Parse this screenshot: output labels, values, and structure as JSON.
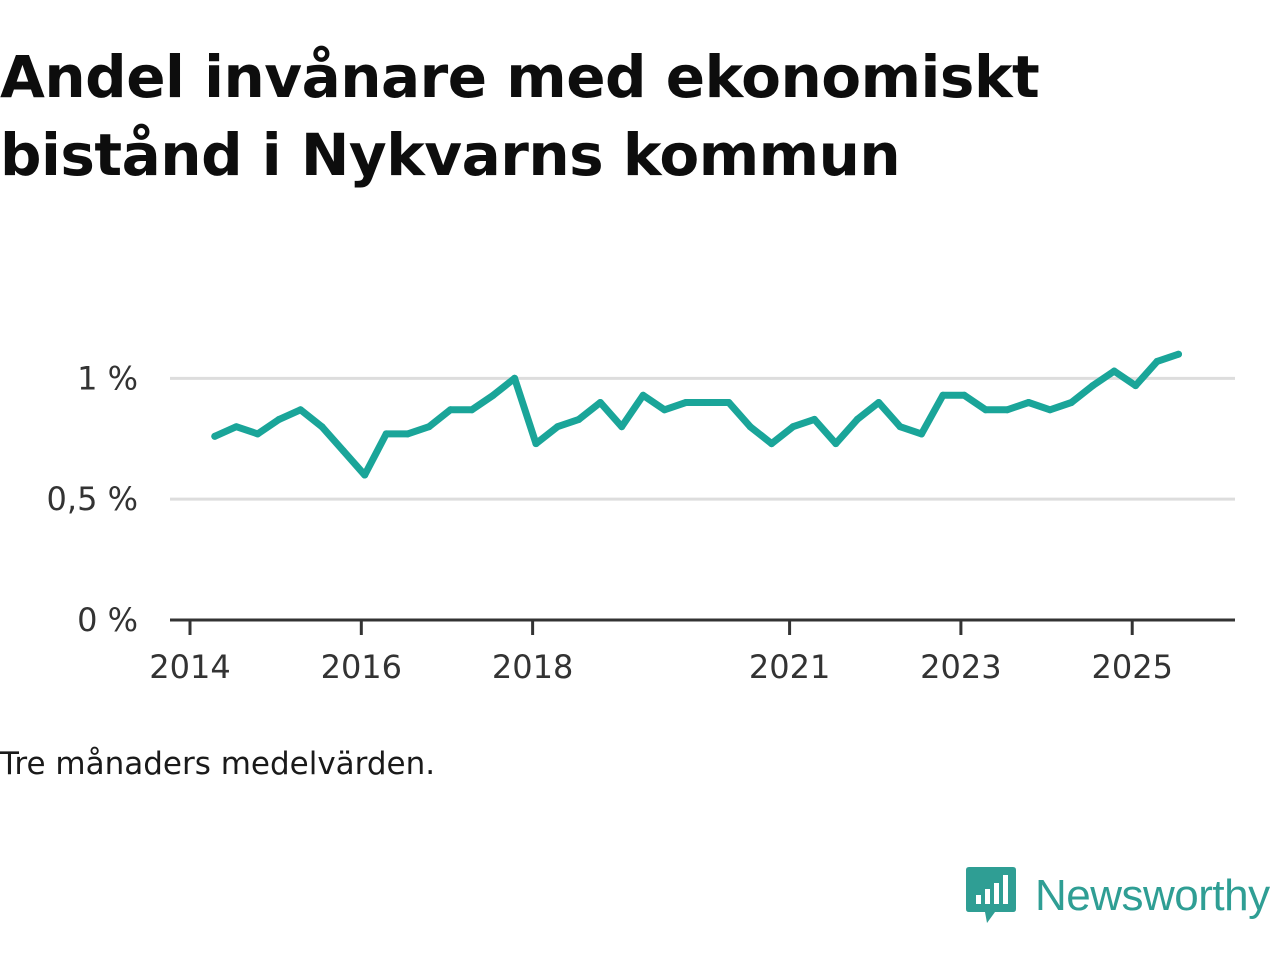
{
  "chart_data": {
    "type": "line",
    "title": "Andel invånare med ekonomiskt bistånd i Nykvarns kommun",
    "note": "Tre månaders medelvärden.",
    "xlabel": "",
    "ylabel": "",
    "ylim": [
      0,
      1.2
    ],
    "xlim": [
      2014.0,
      2026.2
    ],
    "y_ticks": [
      {
        "value": 0,
        "label": "0 %"
      },
      {
        "value": 0.5,
        "label": "0,5 %"
      },
      {
        "value": 1,
        "label": "1 %"
      }
    ],
    "x_ticks": [
      {
        "value": 2014,
        "label": "2014"
      },
      {
        "value": 2016,
        "label": "2016"
      },
      {
        "value": 2018,
        "label": "2018"
      },
      {
        "value": 2021,
        "label": "2021"
      },
      {
        "value": 2023,
        "label": "2023"
      },
      {
        "value": 2025,
        "label": "2025"
      }
    ],
    "series": [
      {
        "name": "Andel invånare med ekonomiskt bistånd",
        "color": "#1aa599",
        "x": [
          2014.29,
          2014.54,
          2014.79,
          2015.04,
          2015.29,
          2015.54,
          2015.79,
          2016.04,
          2016.29,
          2016.54,
          2016.79,
          2017.04,
          2017.29,
          2017.54,
          2017.79,
          2018.04,
          2018.29,
          2018.54,
          2018.79,
          2019.04,
          2019.29,
          2019.54,
          2019.79,
          2020.04,
          2020.29,
          2020.54,
          2020.79,
          2021.04,
          2021.29,
          2021.54,
          2021.79,
          2022.04,
          2022.29,
          2022.54,
          2022.79,
          2023.04,
          2023.29,
          2023.54,
          2023.79,
          2024.04,
          2024.29,
          2024.54,
          2024.79,
          2025.04,
          2025.29,
          2025.54
        ],
        "values": [
          0.76,
          0.8,
          0.77,
          0.83,
          0.87,
          0.8,
          0.7,
          0.6,
          0.77,
          0.77,
          0.8,
          0.87,
          0.87,
          0.93,
          1.0,
          0.73,
          0.8,
          0.83,
          0.9,
          0.8,
          0.93,
          0.87,
          0.9,
          0.9,
          0.9,
          0.8,
          0.73,
          0.8,
          0.83,
          0.73,
          0.83,
          0.9,
          0.8,
          0.77,
          0.93,
          0.93,
          0.87,
          0.87,
          0.9,
          0.87,
          0.9,
          0.97,
          1.03,
          0.97,
          1.07,
          1.1
        ]
      }
    ]
  },
  "brand": {
    "name": "Newsworthy",
    "logo_icon": "newsworthy-logo-icon",
    "color": "#2f9e94"
  }
}
